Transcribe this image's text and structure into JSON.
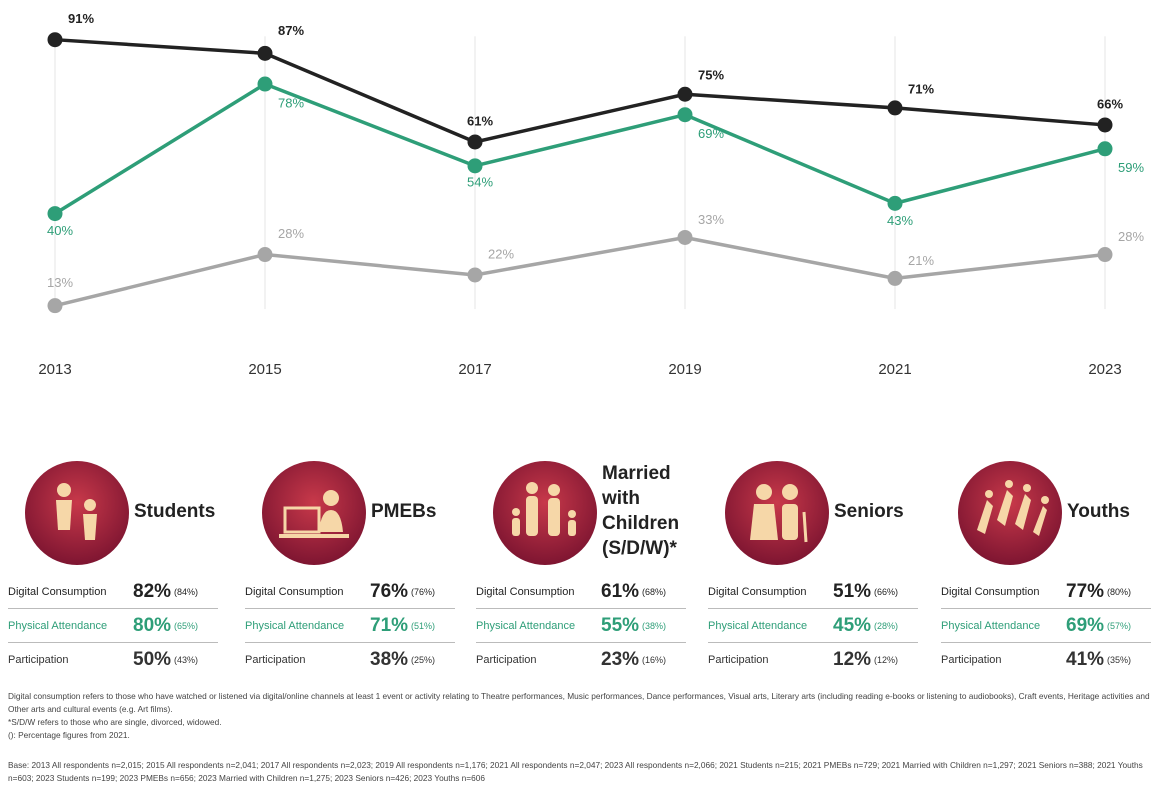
{
  "chart_data": {
    "type": "line",
    "x": [
      2013,
      2015,
      2017,
      2019,
      2021,
      2023
    ],
    "xlim": [
      2013,
      2023
    ],
    "xticks": [
      2013,
      2015,
      2017,
      2019,
      2021,
      2023
    ],
    "ylim": [
      0,
      100
    ],
    "grid": true,
    "series": [
      {
        "color": "#222222",
        "values": [
          91,
          87,
          61,
          75,
          71,
          66
        ],
        "value_labels": [
          "91%",
          "87%",
          "61%",
          "75%",
          "71%",
          "66%"
        ]
      },
      {
        "color": "#2e9e78",
        "values": [
          40,
          78,
          54,
          69,
          43,
          59
        ],
        "value_labels": [
          "40%",
          "78%",
          "54%",
          "69%",
          "43%",
          "59%"
        ]
      },
      {
        "color": "#a6a6a6",
        "values": [
          13,
          28,
          22,
          33,
          21,
          28
        ],
        "value_labels": [
          "13%",
          "28%",
          "22%",
          "33%",
          "21%",
          "28%"
        ]
      }
    ]
  },
  "segments": [
    {
      "name": "Students",
      "rows": [
        {
          "label": "Digital Consumption",
          "value": "82%",
          "previous": "(84%)"
        },
        {
          "label": "Physical Attendance",
          "value": "80%",
          "previous": "(65%)"
        },
        {
          "label": "Participation",
          "value": "50%",
          "previous": "(43%)"
        }
      ]
    },
    {
      "name": "PMEBs",
      "rows": [
        {
          "label": "Digital Consumption",
          "value": "76%",
          "previous": "(76%)"
        },
        {
          "label": "Physical Attendance",
          "value": "71%",
          "previous": "(51%)"
        },
        {
          "label": "Participation",
          "value": "38%",
          "previous": "(25%)"
        }
      ]
    },
    {
      "name": "Married with Children (S/D/W)*",
      "rows": [
        {
          "label": "Digital Consumption",
          "value": "61%",
          "previous": "(68%)"
        },
        {
          "label": "Physical Attendance",
          "value": "55%",
          "previous": "(38%)"
        },
        {
          "label": "Participation",
          "value": "23%",
          "previous": "(16%)"
        }
      ]
    },
    {
      "name": "Seniors",
      "rows": [
        {
          "label": "Digital Consumption",
          "value": "51%",
          "previous": "(66%)"
        },
        {
          "label": "Physical Attendance",
          "value": "45%",
          "previous": "(28%)"
        },
        {
          "label": "Participation",
          "value": "12%",
          "previous": "(12%)"
        }
      ]
    },
    {
      "name": "Youths",
      "rows": [
        {
          "label": "Digital Consumption",
          "value": "77%",
          "previous": "(80%)"
        },
        {
          "label": "Physical Attendance",
          "value": "69%",
          "previous": "(57%)"
        },
        {
          "label": "Participation",
          "value": "41%",
          "previous": "(35%)"
        }
      ]
    }
  ],
  "notes": [
    "Digital consumption refers to those who have watched or listened via digital/online channels at least 1 event or activity relating to Theatre performances, Music performances, Dance performances, Visual arts, Literary arts (including reading e-books or listening to audiobooks), Craft events, Heritage activities and Other arts and cultural events (e.g. Art films).",
    "*S/D/W refers to those who are single, divorced, widowed.",
    "(): Percentage figures from 2021."
  ],
  "base": "Base: 2013 All respondents n=2,015; 2015 All respondents n=2,041; 2017 All respondents n=2,023; 2019 All respondents n=1,176; 2021 All respondents n=2,047; 2023 All respondents n=2,066; 2021 Students n=215; 2021 PMEBs n=729; 2021 Married with Children n=1,297; 2021 Seniors n=388; 2021 Youths n=603; 2023 Students n=199; 2023 PMEBs n=656; 2023 Married with Children n=1,275; 2023 Seniors n=426; 2023 Youths n=606"
}
